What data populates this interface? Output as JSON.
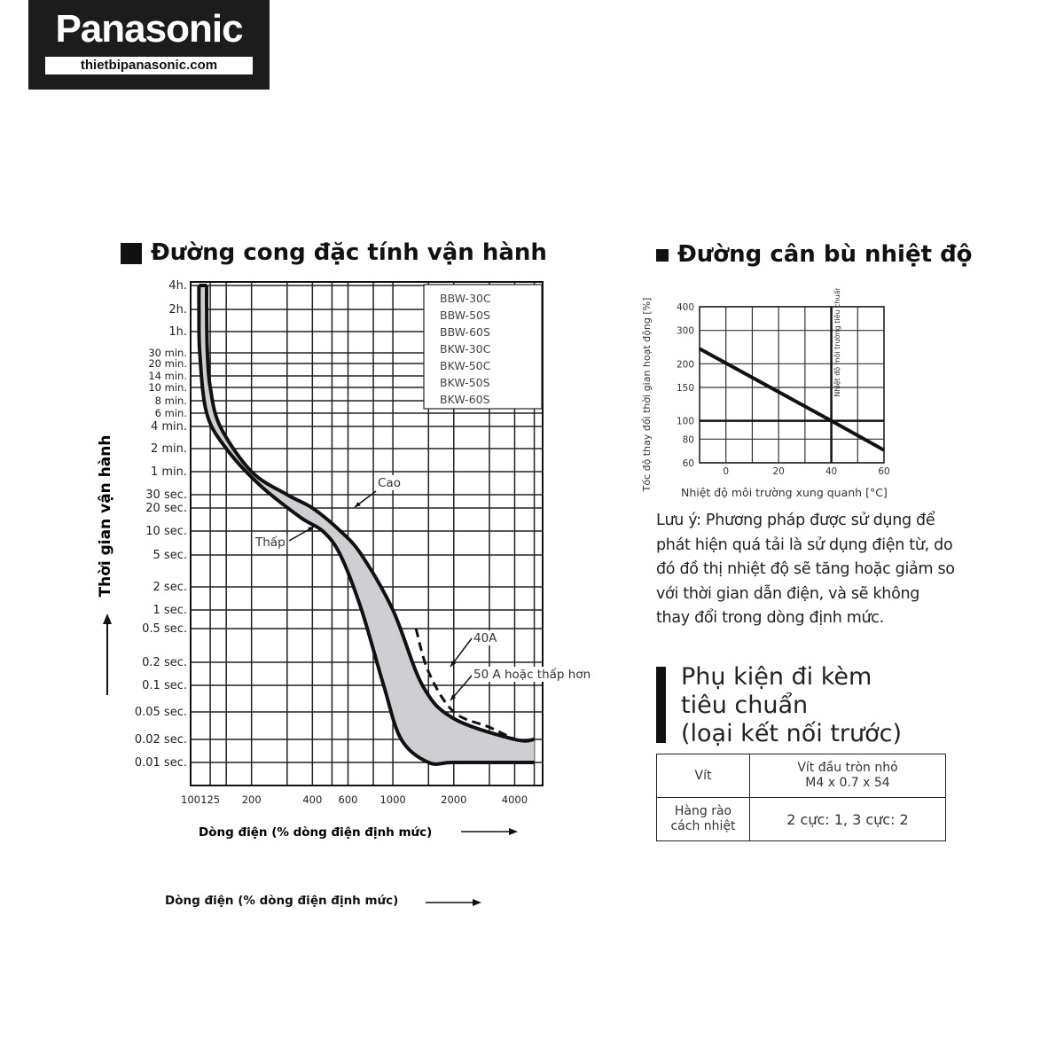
{
  "logo": {
    "brand": "Panasonic",
    "site": "thietbipanasonic.com"
  },
  "left_heading": "Đường cong đặc tính vận hành",
  "right_heading": "Đường cân bù nhiệt độ",
  "colors": {
    "band_fill": "#cfcfd3",
    "ink": "#111111",
    "grid": "#222222"
  },
  "chart_data": [
    {
      "type": "area",
      "title": "Đường cong đặc tính vận hành",
      "ylabel": "Thời gian vận hành",
      "xlabel": "Dòng điện (% dòng điện định mức)",
      "xscale": "log",
      "x_ticks": [
        "100",
        "125",
        "200",
        "400",
        "600",
        "1000",
        "2000",
        "4000"
      ],
      "y_ticks": [
        "4h.",
        "2h.",
        "1h.",
        "30 min.",
        "20 min.",
        "14 min.",
        "10 min.",
        "8 min.",
        "6 min.",
        "4 min.",
        "2 min.",
        "1 min.",
        "30 sec.",
        "20 sec.",
        "10 sec.",
        "5 sec.",
        "2 sec.",
        "1 sec.",
        "0.5 sec.",
        "0.2 sec.",
        "0.1 sec.",
        "0.05 sec.",
        "0.02 sec.",
        "0.01 sec."
      ],
      "legend_box": [
        "BBW-30C",
        "BBW-50S",
        "BBW-60S",
        "BKW-30C",
        "BKW-50C",
        "BKW-50S",
        "BKW-60S"
      ],
      "annotations": [
        "Cao",
        "Thấp",
        "40A",
        "50 A hoặc thấp hơn"
      ],
      "series": [
        {
          "name": "Cao",
          "x": [
            120,
            120,
            121,
            125,
            140,
            200,
            300,
            400,
            550,
            700,
            1000,
            1400,
            2000,
            4000,
            5000
          ],
          "y": [
            "4h.",
            "2h.",
            "30 min.",
            "10 min.",
            "4 min.",
            "1 min.",
            "30 sec.",
            "20 sec.",
            "10 sec.",
            "5 sec.",
            "1 sec.",
            "0.1 sec.",
            "0.04 sec.",
            "0.02 sec.",
            "0.02 sec."
          ]
        },
        {
          "name": "Thấp",
          "x": [
            110,
            110,
            111,
            120,
            150,
            220,
            350,
            450,
            550,
            700,
            900,
            1100,
            1500,
            2000,
            4000,
            5000
          ],
          "y": [
            "4h.",
            "2h.",
            "30 min.",
            "6 min.",
            "2 min.",
            "40 sec.",
            "15 sec.",
            "10 sec.",
            "5 sec.",
            "1 sec.",
            "0.1 sec.",
            "0.02 sec.",
            "0.01 sec.",
            "0.01 sec.",
            "0.01 sec.",
            "0.01 sec."
          ]
        },
        {
          "name": "40A",
          "x": [
            1300,
            1500,
            2000,
            3000,
            4000
          ],
          "y": [
            "0.5 sec.",
            "0.15 sec.",
            "0.05 sec.",
            "0.03 sec.",
            "0.02 sec."
          ]
        }
      ]
    },
    {
      "type": "line",
      "title": "Đường cân bù nhiệt độ",
      "ylabel": "Tốc độ thay đổi thời gian hoạt động [%]",
      "xlabel": "Nhiệt độ môi trường xung quanh [°C]",
      "yscale": "log",
      "x_ticks": [
        "0",
        "20",
        "40",
        "60"
      ],
      "y_ticks": [
        "400",
        "300",
        "200",
        "150",
        "100",
        "80",
        "60"
      ],
      "xlim": [
        -10,
        60
      ],
      "ylim": [
        60,
        400
      ],
      "reference_label": "Nhiệt độ môi trường tiêu chuẩn",
      "reference": {
        "x": 40,
        "y": 100
      },
      "series": [
        {
          "x": [
            -10,
            40,
            60
          ],
          "y": [
            240,
            100,
            70
          ]
        }
      ]
    }
  ],
  "note": "Lưu ý: Phương pháp được sử dụng để phát hiện quá tải là sử dụng điện từ, do đó đồ thị nhiệt độ sẽ tăng hoặc giảm so với thời gian dẫn điện, và sẽ không thay đổi trong dòng định mức.",
  "accessories": {
    "title_lines": [
      "Phụ kiện đi kèm",
      "tiêu chuẩn",
      "(loại kết nối trước)"
    ],
    "rows": [
      {
        "label": "Vít",
        "value_lines": [
          "Vít đầu tròn nhỏ",
          "M4 x 0.7 x 54"
        ]
      },
      {
        "label_lines": [
          "Hàng rào",
          "cách nhiệt"
        ],
        "value": "2 cực: 1, 3 cực: 2"
      }
    ]
  },
  "bottom_xlabel": "Dòng điện (% dòng điện định mức)"
}
